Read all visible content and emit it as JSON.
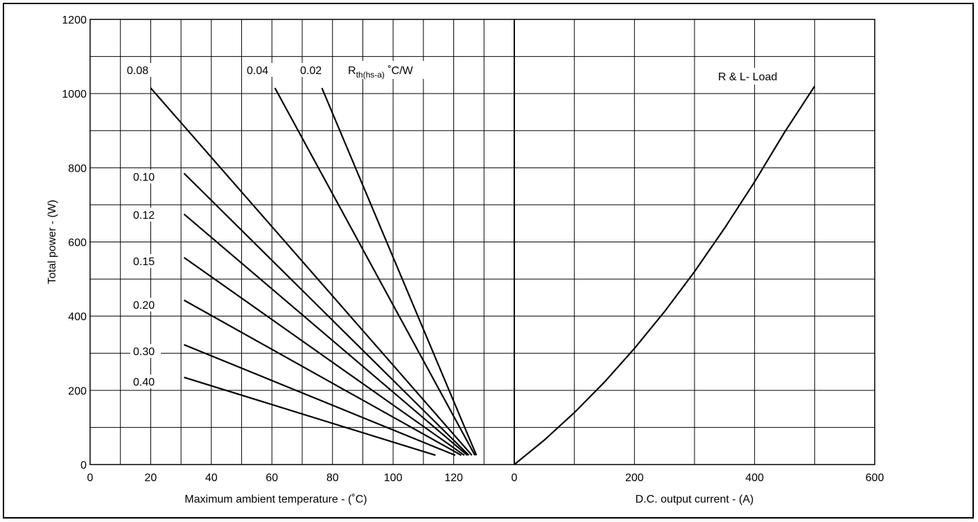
{
  "chart_data": {
    "type": "line",
    "y_axis": {
      "label": "Total power - (W)",
      "range": [
        0,
        1200
      ],
      "ticks": [
        0,
        200,
        400,
        600,
        800,
        1000,
        1200
      ],
      "minor_step": 100
    },
    "left_panel": {
      "xlabel": "Maximum ambient temperature - (˚C)",
      "xlim": [
        0,
        140
      ],
      "ticks": [
        0,
        20,
        40,
        60,
        80,
        100,
        120
      ],
      "minor_step": 10,
      "legend_title": {
        "main": "R",
        "sub": "th(hs-a)",
        "unit": "˚C/W"
      },
      "series": [
        {
          "name": "0.02",
          "x": [
            76.5,
            127.5
          ],
          "y": [
            1015,
            25
          ]
        },
        {
          "name": "0.04",
          "x": [
            61,
            127
          ],
          "y": [
            1015,
            25
          ]
        },
        {
          "name": "0.08",
          "x": [
            20,
            126
          ],
          "y": [
            1015,
            25
          ]
        },
        {
          "name": "0.10",
          "x": [
            31,
            125
          ],
          "y": [
            785,
            25
          ]
        },
        {
          "name": "0.12",
          "x": [
            31,
            124.5
          ],
          "y": [
            675,
            25
          ]
        },
        {
          "name": "0.15",
          "x": [
            31,
            123.5
          ],
          "y": [
            558,
            25
          ]
        },
        {
          "name": "0.20",
          "x": [
            31,
            122.5
          ],
          "y": [
            443,
            25
          ]
        },
        {
          "name": "0.30",
          "x": [
            31,
            120.5
          ],
          "y": [
            323,
            25
          ]
        },
        {
          "name": "0.40",
          "x": [
            31,
            114
          ],
          "y": [
            235,
            25
          ]
        }
      ]
    },
    "right_panel": {
      "xlabel": "D.C. output current - (A)",
      "xlim": [
        0,
        600
      ],
      "ticks": [
        0,
        200,
        400,
        600
      ],
      "minor_step": 100,
      "series": [
        {
          "name": "R & L- Load",
          "x": [
            0,
            50,
            100,
            150,
            200,
            250,
            300,
            350,
            400,
            450,
            500
          ],
          "y": [
            0,
            66,
            140,
            222,
            313,
            412,
            520,
            637,
            762,
            896,
            1020
          ]
        }
      ]
    }
  }
}
